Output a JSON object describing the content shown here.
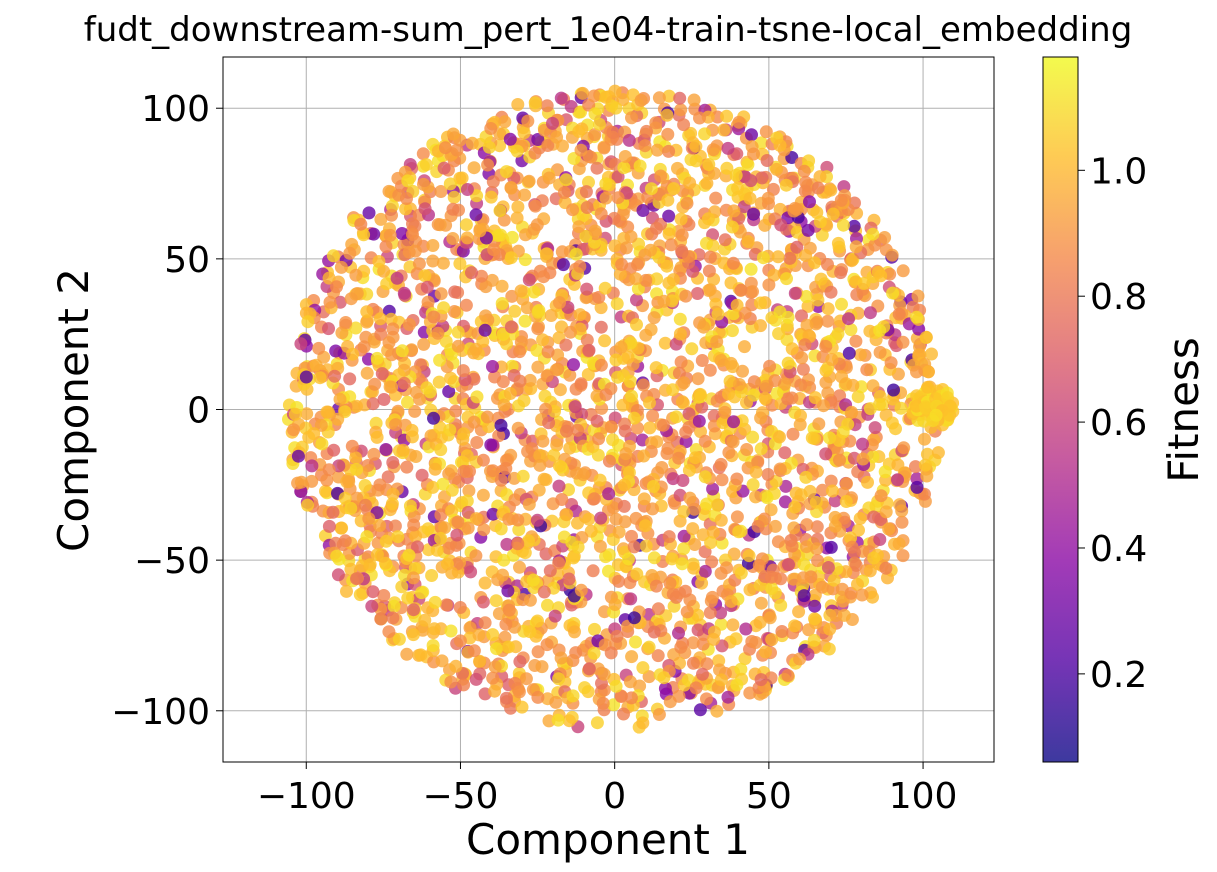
{
  "chart_data": {
    "type": "scatter",
    "title": "fudt_downstream-sum_pert_1e04-train-tsne-local_embedding",
    "xlabel": "Component 1",
    "ylabel": "Component 2",
    "xlim": [
      -127,
      123
    ],
    "ylim": [
      -117,
      117
    ],
    "xticks": [
      -100,
      -50,
      0,
      50,
      100
    ],
    "yticks": [
      -100,
      -50,
      0,
      50,
      100
    ],
    "xtick_labels": [
      "−100",
      "−50",
      "0",
      "50",
      "100"
    ],
    "ytick_labels": [
      "−100",
      "−50",
      "0",
      "50",
      "100"
    ],
    "grid": true,
    "colormap": "plasma",
    "colorbar": {
      "label": "Fitness",
      "range": [
        0.06,
        1.18
      ],
      "ticks": [
        0.2,
        0.4,
        0.6,
        0.8,
        1.0
      ],
      "tick_labels": [
        "0.2",
        "0.4",
        "0.6",
        "0.8",
        "1.0"
      ],
      "colors": [
        "#0d0887",
        "#5302a3",
        "#8b0aa5",
        "#b83289",
        "#db5c68",
        "#f48849",
        "#febd2a",
        "#f0f921"
      ]
    },
    "point_alpha": 0.8,
    "cloud": {
      "shape": "disc",
      "center": [
        0,
        0
      ],
      "radius": 106,
      "approx_points": 3000,
      "fitness_mean": 0.95,
      "cluster": {
        "center": [
          103,
          1
        ],
        "radius": 7
      }
    }
  }
}
